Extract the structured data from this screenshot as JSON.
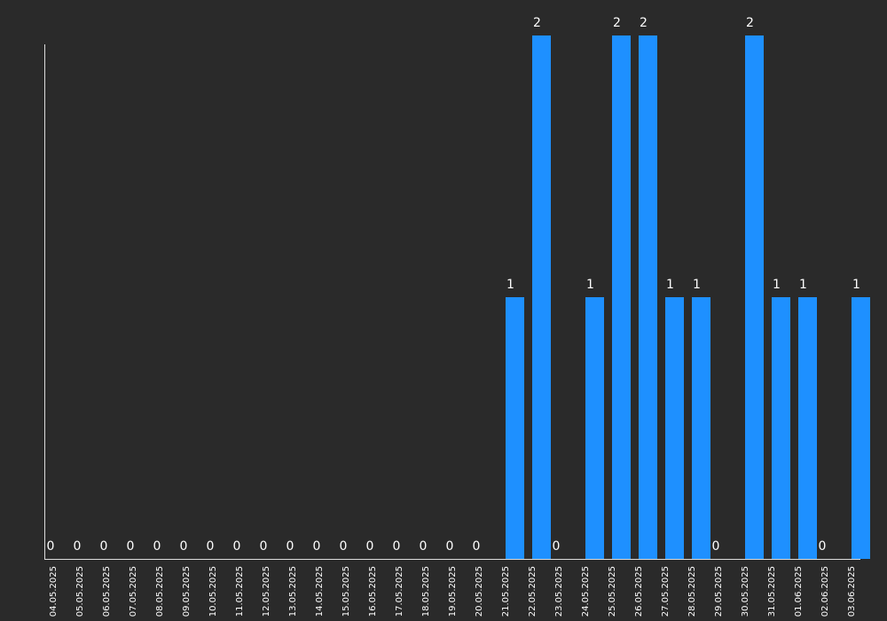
{
  "chart_data": {
    "type": "bar",
    "categories": [
      "04.05.2025",
      "05.05.2025",
      "06.05.2025",
      "07.05.2025",
      "08.05.2025",
      "09.05.2025",
      "10.05.2025",
      "11.05.2025",
      "12.05.2025",
      "13.05.2025",
      "14.05.2025",
      "15.05.2025",
      "16.05.2025",
      "17.05.2025",
      "18.05.2025",
      "19.05.2025",
      "20.05.2025",
      "21.05.2025",
      "22.05.2025",
      "23.05.2025",
      "24.05.2025",
      "25.05.2025",
      "26.05.2025",
      "27.05.2025",
      "28.05.2025",
      "29.05.2025",
      "30.05.2025",
      "31.05.2025",
      "01.06.2025",
      "02.06.2025",
      "03.06.2025"
    ],
    "values": [
      0,
      0,
      0,
      0,
      0,
      0,
      0,
      0,
      0,
      0,
      0,
      0,
      0,
      0,
      0,
      0,
      0,
      1,
      2,
      0,
      1,
      2,
      2,
      1,
      1,
      0,
      2,
      1,
      1,
      0,
      1
    ],
    "title": "",
    "xlabel": "",
    "ylabel": "",
    "ylim": [
      0,
      2
    ],
    "grid": false,
    "legend": "none",
    "colors": {
      "bar": "#1e90ff",
      "background": "#2a2a2a",
      "text": "#ffffff",
      "axis": "#dddddd"
    }
  }
}
